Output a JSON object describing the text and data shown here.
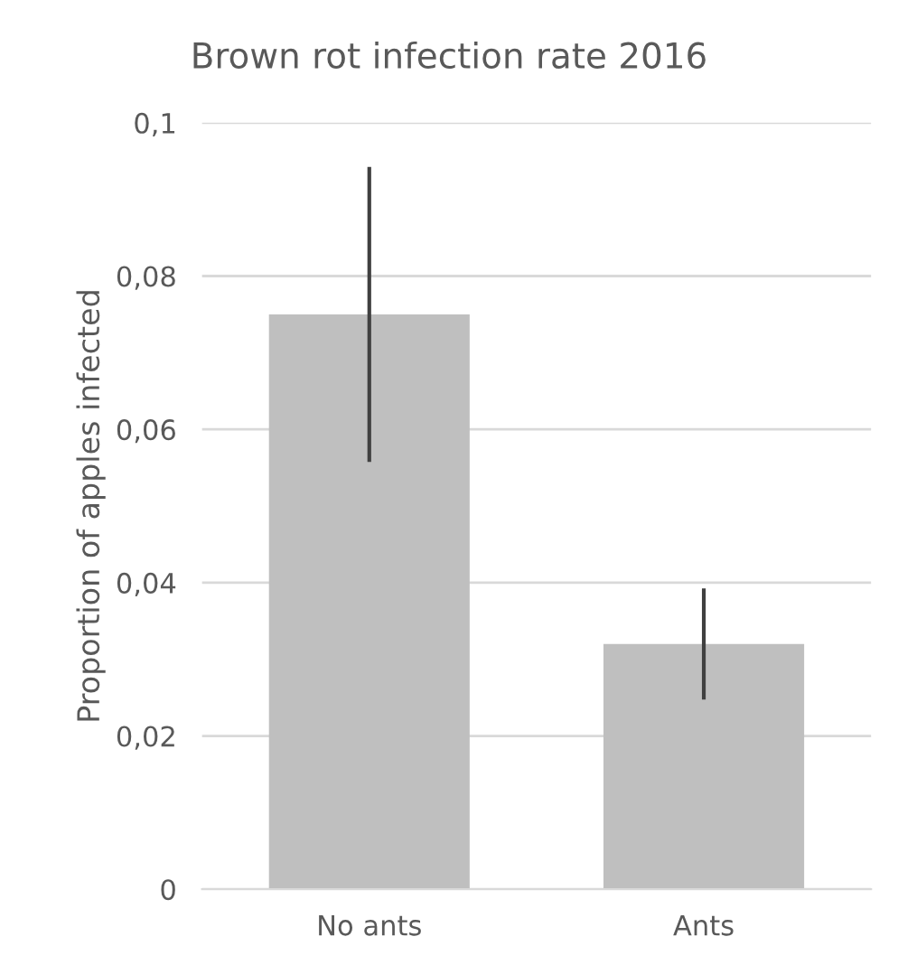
{
  "chart_data": {
    "type": "bar",
    "title": "Brown rot infection rate 2016",
    "ylabel": "Proportion of apples infected",
    "categories": [
      "No ants",
      "Ants"
    ],
    "values": [
      0.075,
      0.032
    ],
    "errors": [
      [
        0.056,
        0.094
      ],
      [
        0.025,
        0.039
      ]
    ],
    "color": "#bfbfbf",
    "ylim": [
      0,
      0.1
    ],
    "yticks": [
      0,
      {
        "value": 0.02,
        "label": "0,02"
      },
      {
        "value": 0.04,
        "label": "0,04"
      },
      {
        "value": 0.06,
        "label": "0,06"
      },
      {
        "value": 0.08,
        "label": "0,08"
      },
      {
        "value": 0.1,
        "label": "0,1"
      }
    ],
    "grid": "y"
  }
}
